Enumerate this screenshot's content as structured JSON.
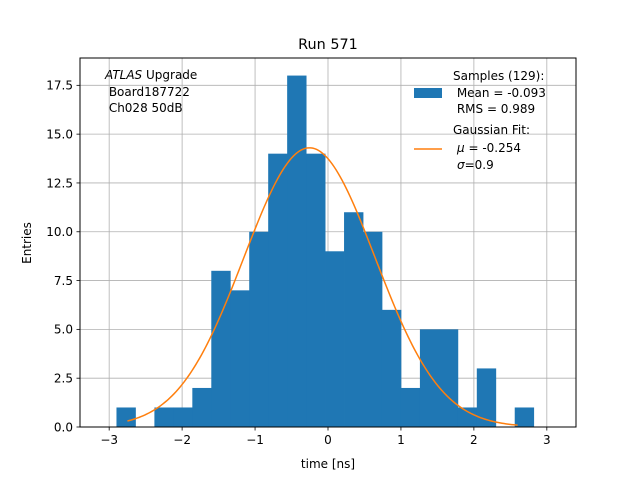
{
  "chart_data": {
    "type": "bar",
    "title": "Run 571",
    "xlabel": "time [ns]",
    "ylabel": "Entries",
    "xlim": [
      -3.4,
      3.4
    ],
    "ylim": [
      0,
      18.9
    ],
    "grid": true,
    "x_ticks": [
      -3,
      -2,
      -1,
      0,
      1,
      2,
      3
    ],
    "x_tick_labels": [
      "−3",
      "−2",
      "−1",
      "0",
      "1",
      "2",
      "3"
    ],
    "y_ticks": [
      0,
      2.5,
      5,
      7.5,
      10,
      12.5,
      15,
      17.5
    ],
    "y_tick_labels": [
      "0.0",
      "2.5",
      "5.0",
      "7.5",
      "10.0",
      "12.5",
      "15.0",
      "17.5"
    ],
    "bin_edges": [
      -2.9,
      -2.64,
      -2.38,
      -2.12,
      -1.86,
      -1.6,
      -1.34,
      -1.08,
      -0.82,
      -0.56,
      -0.3,
      -0.04,
      0.22,
      0.48,
      0.74,
      1.0,
      1.26,
      1.52,
      1.78,
      2.04,
      2.3,
      2.56,
      2.82
    ],
    "counts": [
      1,
      0,
      1,
      1,
      2,
      8,
      7,
      10,
      14,
      18,
      14,
      9,
      11,
      10,
      6,
      2,
      5,
      5,
      1,
      3,
      0,
      1
    ],
    "histogram_color": "#1f77b4",
    "fit": {
      "type": "gaussian",
      "mu": -0.254,
      "sigma": 0.9,
      "amplitude": 14.3,
      "x_range": [
        -2.75,
        2.6
      ],
      "color": "#ff7f0e"
    },
    "annotation": {
      "italic": "ATLAS",
      "line1_rest": " Upgrade",
      "line2": " Board187722",
      "line3": " Ch028 50dB"
    },
    "legend": {
      "position": "top-right",
      "samples_title": "Samples (129):",
      "samples_mean": " Mean = -0.093",
      "samples_rms": " RMS = 0.989",
      "fit_title": "Gaussian Fit:",
      "fit_mu_symbol": "μ",
      "fit_mu_rest": " = -0.254",
      "fit_sigma_symbol": "σ",
      "fit_sigma_rest": "=0.9"
    }
  }
}
